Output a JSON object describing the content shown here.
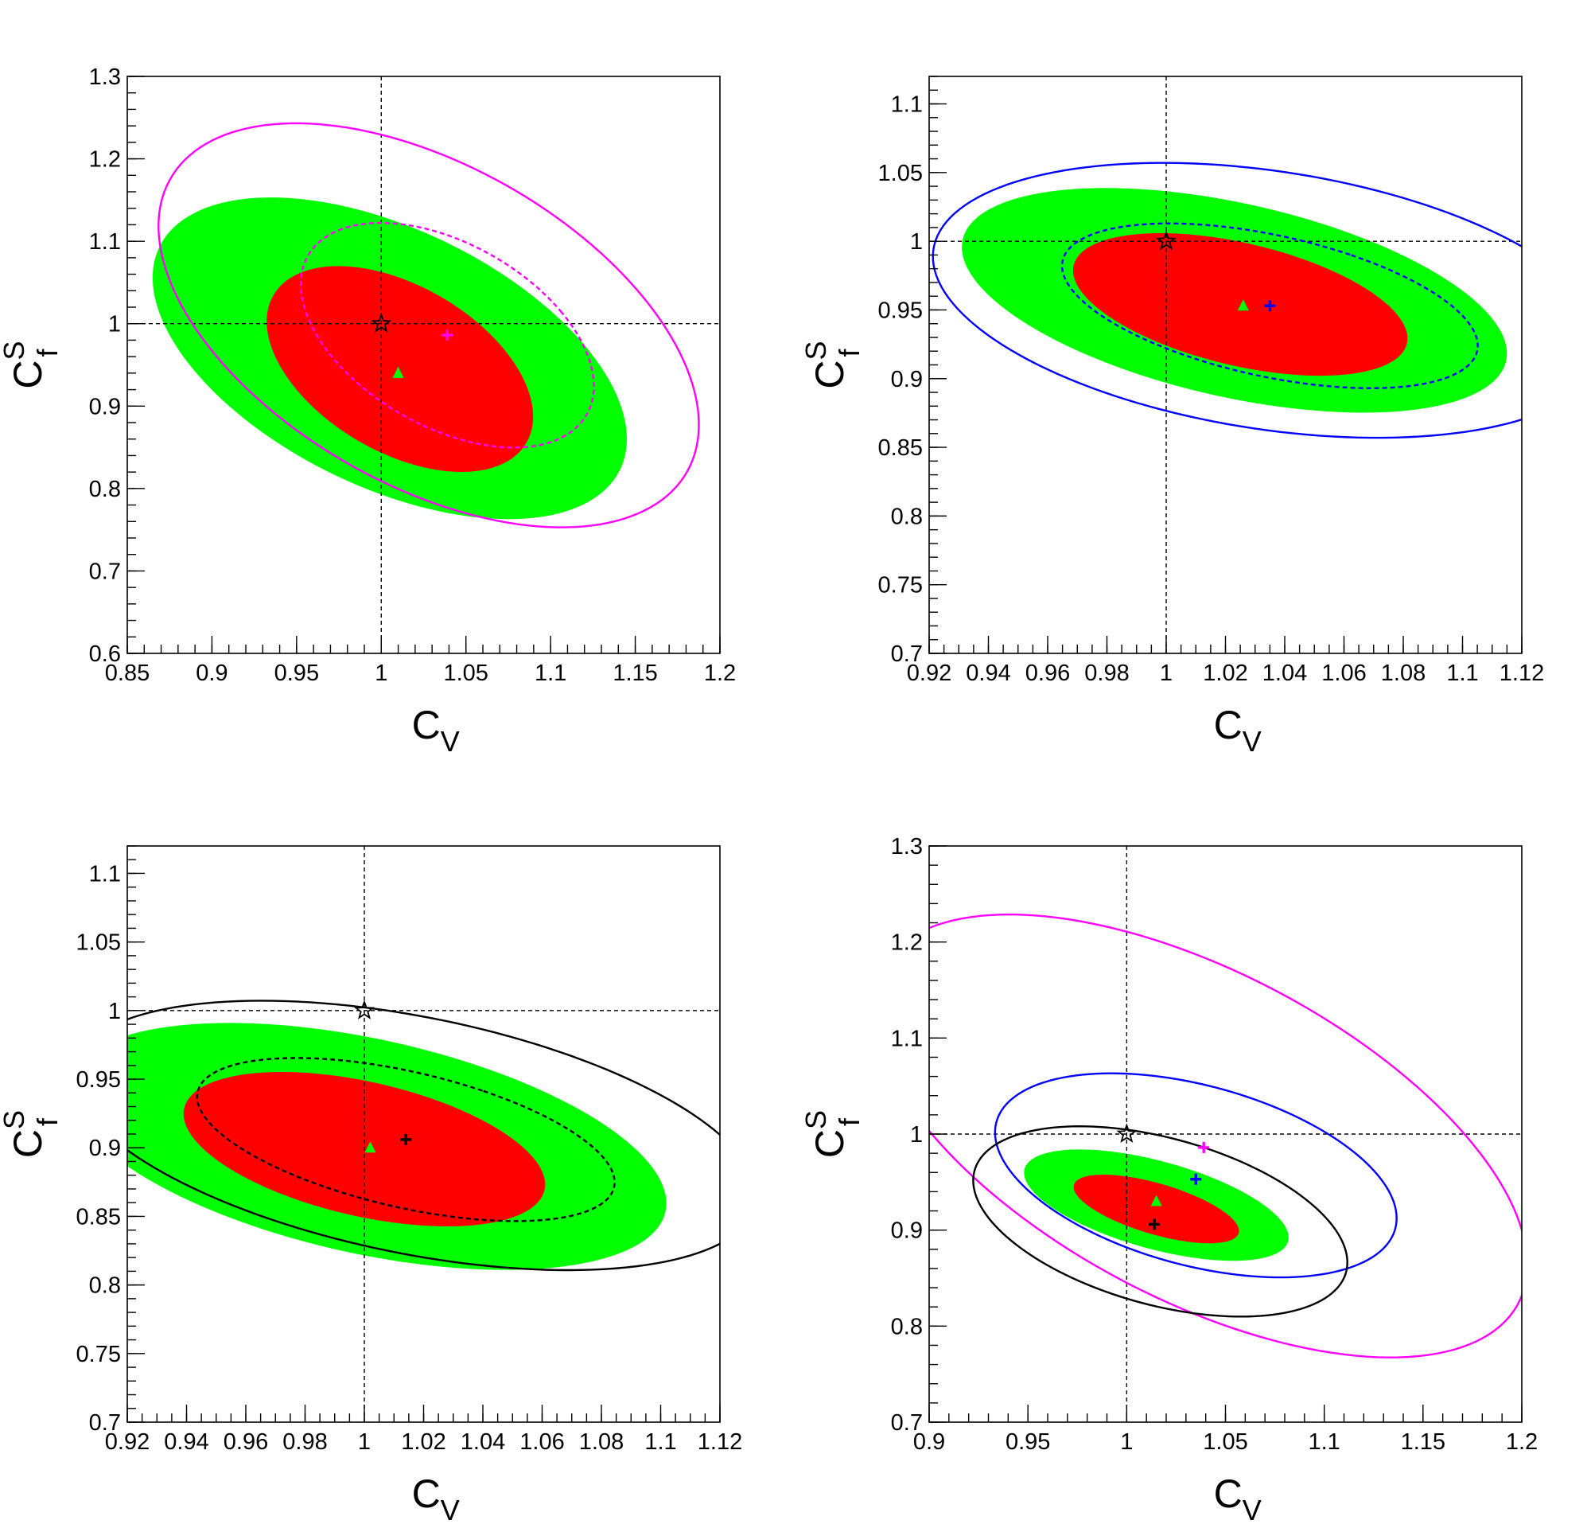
{
  "colors": {
    "green_band": "#00ff00",
    "red_band": "#ff0000",
    "magenta": "#ff00ff",
    "blue": "#0000ff",
    "black": "#000000"
  },
  "chart_data": [
    {
      "type": "scatter",
      "panel": "top-left",
      "title": "",
      "xlabel": "C",
      "xlabel_sub": "V",
      "ylabel": "C",
      "ylabel_sup": "S",
      "ylabel_sub": "f",
      "xlim": [
        0.85,
        1.2
      ],
      "ylim": [
        0.6,
        1.3
      ],
      "xticks": [
        "0.85",
        "0.9",
        "0.95",
        "1",
        "1.05",
        "1.1",
        "1.15",
        "1.2"
      ],
      "yticks": [
        "0.6",
        "0.7",
        "0.8",
        "0.9",
        "1",
        "1.1",
        "1.2",
        "1.3"
      ],
      "reference_lines": {
        "x": 1.0,
        "y": 1.0
      },
      "regions": [
        {
          "name": "2-sigma band",
          "color": "green_band",
          "center": [
            1.005,
            0.958
          ],
          "semi_axes": [
            0.111,
            0.213
          ],
          "angle_deg": 28
        },
        {
          "name": "1-sigma band",
          "color": "red_band",
          "center": [
            1.011,
            0.945
          ],
          "semi_axes": [
            0.066,
            0.132
          ],
          "angle_deg": 22
        }
      ],
      "contours": [
        {
          "name": "outer",
          "color": "magenta",
          "style": "solid",
          "center": [
            1.028,
            0.998
          ],
          "semi_axes": [
            0.13,
            0.262
          ],
          "angle_deg": 24
        },
        {
          "name": "inner",
          "color": "magenta",
          "style": "dashed",
          "center": [
            1.039,
            0.986
          ],
          "semi_axes": [
            0.073,
            0.144
          ],
          "angle_deg": 22
        }
      ],
      "points": [
        {
          "name": "SM",
          "marker": "star",
          "color": "black",
          "x": 1.0,
          "y": 1.0
        },
        {
          "name": "bestfit-triangle",
          "marker": "triangle",
          "color": "green_band",
          "x": 1.01,
          "y": 0.94
        },
        {
          "name": "bestfit-cross",
          "marker": "cross",
          "color": "magenta",
          "x": 1.039,
          "y": 0.986
        }
      ]
    },
    {
      "type": "scatter",
      "panel": "top-right",
      "title": "",
      "xlabel": "C",
      "xlabel_sub": "V",
      "ylabel": "C",
      "ylabel_sup": "S",
      "ylabel_sub": "f",
      "xlim": [
        0.92,
        1.12
      ],
      "ylim": [
        0.7,
        1.12
      ],
      "xticks": [
        "0.92",
        "0.94",
        "0.96",
        "0.98",
        "1",
        "1.02",
        "1.04",
        "1.06",
        "1.08",
        "1.1",
        "1.12"
      ],
      "yticks": [
        "0.7",
        "0.75",
        "0.8",
        "0.85",
        "0.9",
        "0.95",
        "1",
        "1.05",
        "1.1"
      ],
      "reference_lines": {
        "x": 1.0,
        "y": 1.0
      },
      "regions": [
        {
          "name": "2-sigma band",
          "color": "green_band",
          "center": [
            1.023,
            0.957
          ],
          "semi_axes": [
            0.0625,
            0.106
          ],
          "angle_deg": 52
        },
        {
          "name": "1-sigma band",
          "color": "red_band",
          "center": [
            1.025,
            0.954
          ],
          "semi_axes": [
            0.039,
            0.066
          ],
          "angle_deg": 50
        }
      ],
      "contours": [
        {
          "name": "outer",
          "color": "blue",
          "style": "solid",
          "center": [
            1.035,
            0.957
          ],
          "semi_axes": [
            0.087,
            0.124
          ],
          "angle_deg": 56
        },
        {
          "name": "inner",
          "color": "blue",
          "style": "dashed",
          "center": [
            1.035,
            0.953
          ],
          "semi_axes": [
            0.046,
            0.08
          ],
          "angle_deg": 54
        }
      ],
      "points": [
        {
          "name": "SM",
          "marker": "star",
          "color": "black",
          "x": 1.0,
          "y": 1.0
        },
        {
          "name": "bestfit-triangle",
          "marker": "triangle",
          "color": "green_band",
          "x": 1.026,
          "y": 0.953
        },
        {
          "name": "bestfit-cross",
          "marker": "cross",
          "color": "blue",
          "x": 1.035,
          "y": 0.953
        }
      ]
    },
    {
      "type": "scatter",
      "panel": "bottom-left",
      "title": "",
      "xlabel": "C",
      "xlabel_sub": "V",
      "ylabel": "C",
      "ylabel_sup": "S",
      "ylabel_sub": "f",
      "xlim": [
        0.92,
        1.12
      ],
      "ylim": [
        0.7,
        1.12
      ],
      "xticks": [
        "0.92",
        "0.94",
        "0.96",
        "0.98",
        "1",
        "1.02",
        "1.04",
        "1.06",
        "1.08",
        "1.1",
        "1.12"
      ],
      "yticks": [
        "0.7",
        "0.75",
        "0.8",
        "0.85",
        "0.9",
        "0.95",
        "1",
        "1.05",
        "1.1"
      ],
      "reference_lines": {
        "x": 1.0,
        "y": 1.0
      },
      "regions": [
        {
          "name": "2-sigma band",
          "color": "green_band",
          "center": [
            1.001,
            0.901
          ],
          "semi_axes": [
            0.0695,
            0.116
          ],
          "angle_deg": 52
        },
        {
          "name": "1-sigma band",
          "color": "red_band",
          "center": [
            1.0,
            0.899
          ],
          "semi_axes": [
            0.043,
            0.071
          ],
          "angle_deg": 50
        }
      ],
      "contours": [
        {
          "name": "outer",
          "color": "black",
          "style": "solid",
          "center": [
            1.017,
            0.909
          ],
          "semi_axes": [
            0.078,
            0.13
          ],
          "angle_deg": 55
        },
        {
          "name": "inner",
          "color": "black",
          "style": "dashed",
          "center": [
            1.014,
            0.906
          ],
          "semi_axes": [
            0.044,
            0.081
          ],
          "angle_deg": 54
        }
      ],
      "points": [
        {
          "name": "SM",
          "marker": "star",
          "color": "black",
          "x": 1.0,
          "y": 1.0
        },
        {
          "name": "bestfit-triangle",
          "marker": "triangle",
          "color": "green_band",
          "x": 1.002,
          "y": 0.9
        },
        {
          "name": "bestfit-cross",
          "marker": "cross",
          "color": "black",
          "x": 1.014,
          "y": 0.906
        }
      ]
    },
    {
      "type": "scatter",
      "panel": "bottom-right",
      "title": "",
      "xlabel": "C",
      "xlabel_sub": "V",
      "ylabel": "C",
      "ylabel_sup": "S",
      "ylabel_sub": "f",
      "xlim": [
        0.9,
        1.2
      ],
      "ylim": [
        0.7,
        1.3
      ],
      "xticks": [
        "0.9",
        "0.95",
        "1",
        "1.05",
        "1.1",
        "1.15",
        "1.2"
      ],
      "yticks": [
        "0.7",
        "0.8",
        "0.9",
        "1",
        "1.1",
        "1.2",
        "1.3"
      ],
      "reference_lines": {
        "x": 1.0,
        "y": 1.0
      },
      "regions": [
        {
          "name": "2-sigma band",
          "color": "green_band",
          "center": [
            1.015,
            0.926
          ],
          "semi_axes": [
            0.04,
            0.079
          ],
          "angle_deg": 52
        },
        {
          "name": "1-sigma band",
          "color": "red_band",
          "center": [
            1.015,
            0.922
          ],
          "semi_axes": [
            0.023,
            0.05
          ],
          "angle_deg": 52
        }
      ],
      "contours": [
        {
          "name": "magenta",
          "color": "magenta",
          "style": "solid",
          "center": [
            1.037,
            0.998
          ],
          "semi_axes": [
            0.121,
            0.257
          ],
          "angle_deg": 30
        },
        {
          "name": "blue",
          "color": "blue",
          "style": "solid",
          "center": [
            1.035,
            0.957
          ],
          "semi_axes": [
            0.079,
            0.124
          ],
          "angle_deg": 42
        },
        {
          "name": "black",
          "color": "black",
          "style": "solid",
          "center": [
            1.017,
            0.909
          ],
          "semi_axes": [
            0.073,
            0.116
          ],
          "angle_deg": 42
        }
      ],
      "points": [
        {
          "name": "SM",
          "marker": "star",
          "color": "black",
          "x": 1.0,
          "y": 1.0
        },
        {
          "name": "bestfit-triangle",
          "marker": "triangle",
          "color": "green_band",
          "x": 1.015,
          "y": 0.93
        },
        {
          "name": "bestfit-cross-magenta",
          "marker": "cross",
          "color": "magenta",
          "x": 1.039,
          "y": 0.986
        },
        {
          "name": "bestfit-cross-blue",
          "marker": "cross",
          "color": "blue",
          "x": 1.035,
          "y": 0.953
        },
        {
          "name": "bestfit-cross-black",
          "marker": "cross",
          "color": "black",
          "x": 1.014,
          "y": 0.906
        }
      ]
    }
  ]
}
